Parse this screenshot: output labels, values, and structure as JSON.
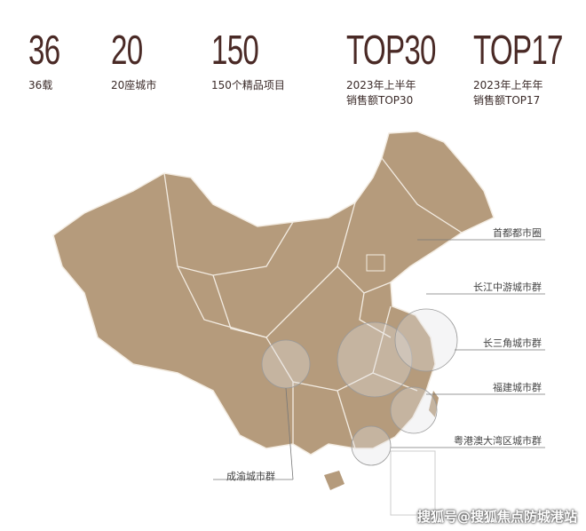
{
  "stats": [
    {
      "value": "36",
      "caption": [
        "36载"
      ]
    },
    {
      "value": "20",
      "caption": [
        "20座城市"
      ]
    },
    {
      "value": "150",
      "caption": [
        "150个精品项目"
      ]
    },
    {
      "value": "TOP30",
      "caption": [
        "2023年上半年",
        "销售额TOP30"
      ]
    },
    {
      "value": "TOP17",
      "caption": [
        "2023年上年年",
        "销售额TOP17"
      ]
    }
  ],
  "regions": [
    "首都都市圈",
    "长江中游城市群",
    "长三角城市群",
    "福建城市群",
    "粤港澳大湾区城市群",
    "成渝城市群"
  ],
  "watermark": "搜狐号@搜狐焦点防城港站",
  "colors": {
    "map": "#b59b7c",
    "text": "#4a2a26"
  }
}
